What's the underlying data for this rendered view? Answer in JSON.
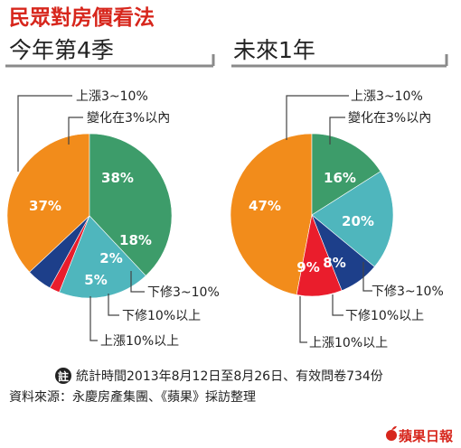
{
  "title": "民眾對房價看法",
  "labels": {
    "up_small": "上漲3~10%",
    "flat": "變化在3%以內",
    "down_small": "下修3~10%",
    "down_large": "下修10%以上",
    "up_large": "上漲10%以上"
  },
  "note": {
    "icon": "註",
    "line1": "統計時間2013年8月12日至8月26日、有效問卷734份",
    "line2": "資料來源：永慶房產集團、《蘋果》採訪整理"
  },
  "brand": "蘋果日報",
  "colors": {
    "title": "#d7261c",
    "up_small": "#f28c1b",
    "flat": "#3d9c6a",
    "down_small": "#4fb6bd",
    "down_large": "#1d3f8a",
    "up_large": "#ea1d2c",
    "divider": "#8a8a8a",
    "leader": "#444444"
  },
  "chart_data": [
    {
      "type": "pie",
      "title": "今年第4季",
      "slices": [
        {
          "name": "上漲3~10%",
          "value": 37,
          "label": "37%"
        },
        {
          "name": "變化在3%以內",
          "value": 38,
          "label": "38%"
        },
        {
          "name": "下修3~10%",
          "value": 18,
          "label": "18%"
        },
        {
          "name": "下修10%以上",
          "value": 5,
          "label": "5%"
        },
        {
          "name": "上漲10%以上",
          "value": 2,
          "label": "2%"
        }
      ]
    },
    {
      "type": "pie",
      "title": "未來1年",
      "slices": [
        {
          "name": "上漲3~10%",
          "value": 47,
          "label": "47%"
        },
        {
          "name": "變化在3%以內",
          "value": 16,
          "label": "16%"
        },
        {
          "name": "下修3~10%",
          "value": 20,
          "label": "20%"
        },
        {
          "name": "下修10%以上",
          "value": 8,
          "label": "8%"
        },
        {
          "name": "上漲10%以上",
          "value": 9,
          "label": "9%"
        }
      ]
    }
  ]
}
